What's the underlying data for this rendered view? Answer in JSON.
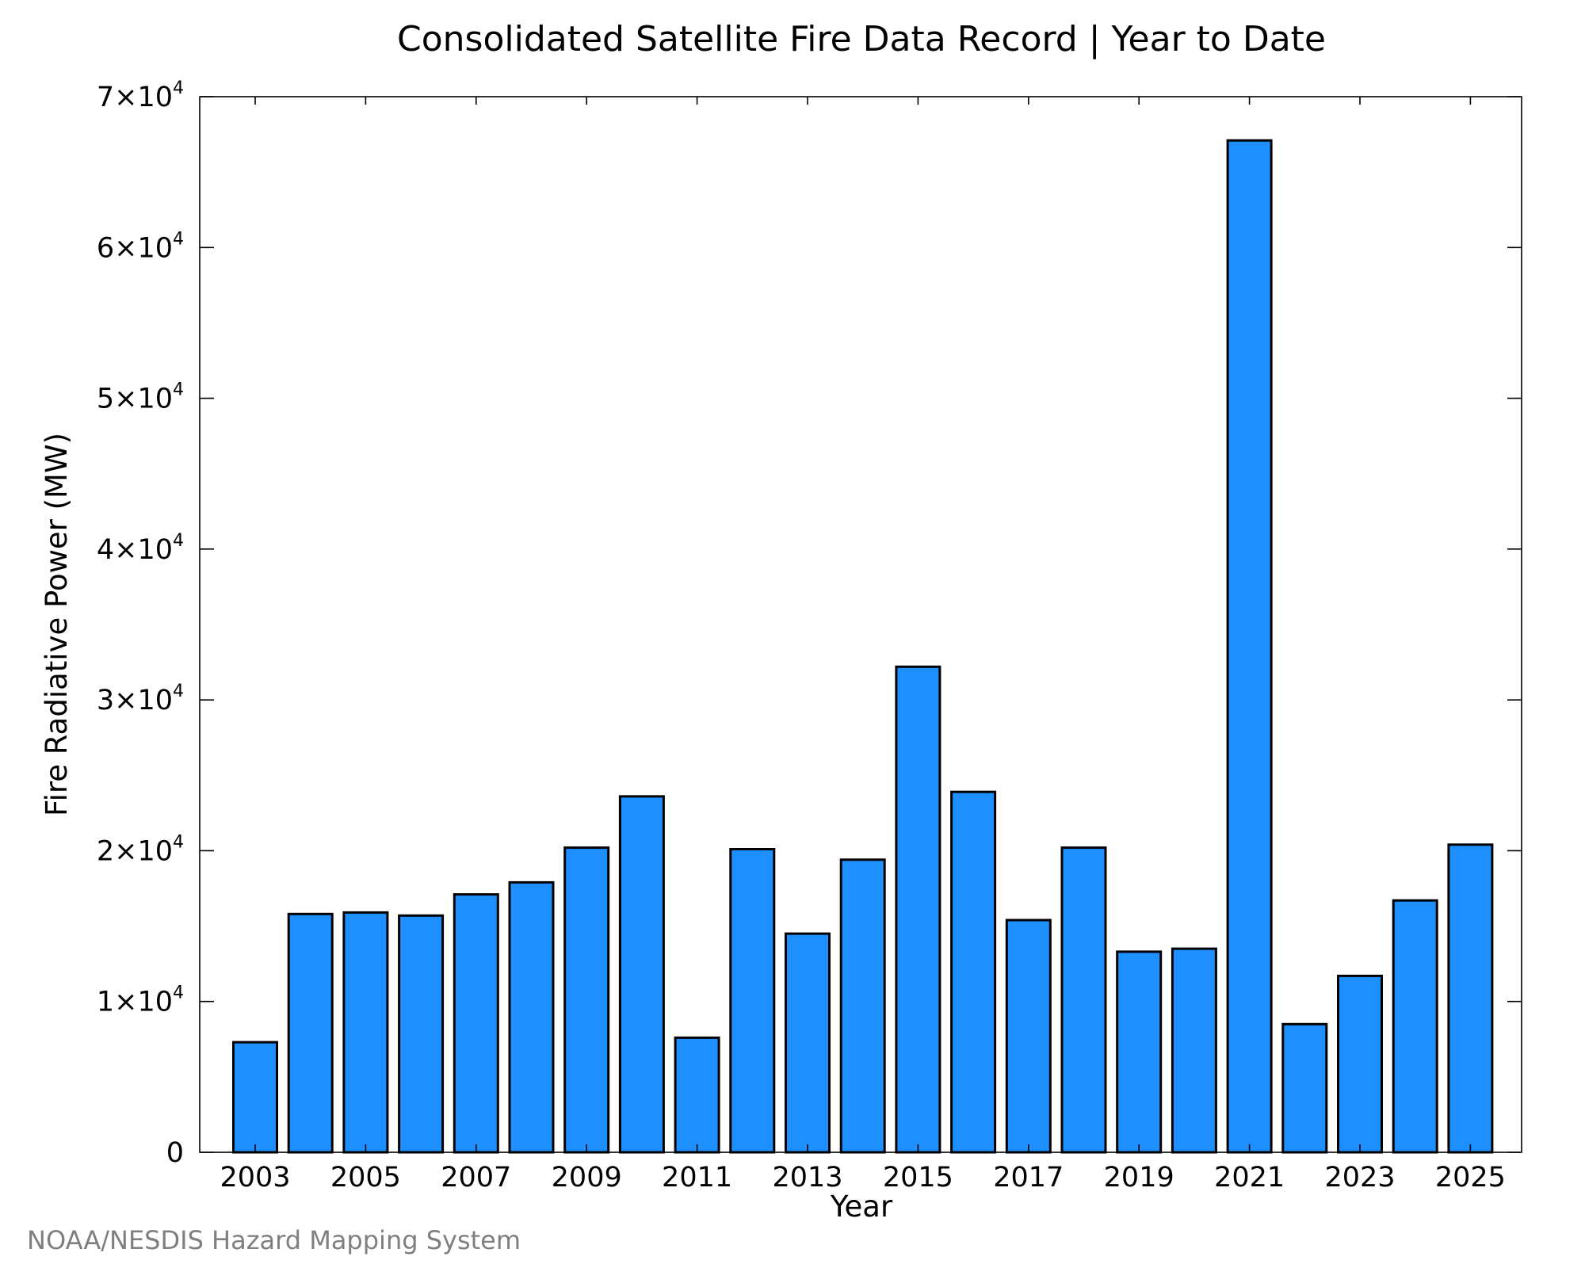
{
  "chart_data": {
    "type": "bar",
    "title": "Consolidated Satellite Fire Data Record | Year to Date",
    "xlabel": "Year",
    "ylabel": "Fire Radiative Power (MW)",
    "categories": [
      "2003",
      "2004",
      "2005",
      "2006",
      "2007",
      "2008",
      "2009",
      "2010",
      "2011",
      "2012",
      "2013",
      "2014",
      "2015",
      "2016",
      "2017",
      "2018",
      "2019",
      "2020",
      "2021",
      "2022",
      "2023",
      "2024",
      "2025"
    ],
    "values": [
      7300,
      15800,
      15900,
      15700,
      17100,
      17900,
      20200,
      23600,
      7600,
      20100,
      14500,
      19400,
      32200,
      23900,
      15400,
      20200,
      13300,
      13500,
      67100,
      8500,
      11700,
      16700,
      20400
    ],
    "ylim": [
      0,
      70000
    ],
    "xtick_labels": [
      "2003",
      "2005",
      "2007",
      "2009",
      "2011",
      "2013",
      "2015",
      "2017",
      "2019",
      "2021",
      "2023",
      "2025"
    ],
    "ytick_labels": [
      {
        "value": 0,
        "mantissa": "0",
        "exponent": ""
      },
      {
        "value": 10000,
        "mantissa": "1×10",
        "exponent": "4"
      },
      {
        "value": 20000,
        "mantissa": "2×10",
        "exponent": "4"
      },
      {
        "value": 30000,
        "mantissa": "3×10",
        "exponent": "4"
      },
      {
        "value": 40000,
        "mantissa": "4×10",
        "exponent": "4"
      },
      {
        "value": 50000,
        "mantissa": "5×10",
        "exponent": "4"
      },
      {
        "value": 60000,
        "mantissa": "6×10",
        "exponent": "4"
      },
      {
        "value": 70000,
        "mantissa": "7×10",
        "exponent": "4"
      }
    ],
    "bar_color": "#1e8fff",
    "grid": false,
    "legend": "none"
  },
  "credit": "NOAA/NESDIS Hazard Mapping System"
}
